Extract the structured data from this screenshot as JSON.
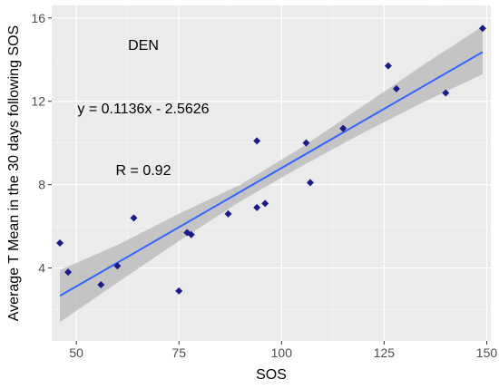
{
  "chart_data": {
    "type": "scatter",
    "xlabel": "SOS",
    "ylabel": "Average T Mean in the 30 days following SOS",
    "xlim": [
      44,
      151
    ],
    "ylim": [
      0.5,
      16.6
    ],
    "x_ticks": [
      50,
      75,
      100,
      125,
      150
    ],
    "y_ticks": [
      4,
      8,
      12,
      16
    ],
    "grid": true,
    "annotations": {
      "site": "DEN",
      "equation": "y = 0.1136x - 2.5626",
      "r": "R = 0.92"
    },
    "series": [
      {
        "points": [
          {
            "x": 46,
            "y": 5.2
          },
          {
            "x": 48,
            "y": 3.8
          },
          {
            "x": 56,
            "y": 3.2
          },
          {
            "x": 60,
            "y": 4.1
          },
          {
            "x": 64,
            "y": 6.4
          },
          {
            "x": 75,
            "y": 2.9
          },
          {
            "x": 77,
            "y": 5.7
          },
          {
            "x": 78,
            "y": 5.6
          },
          {
            "x": 87,
            "y": 6.6
          },
          {
            "x": 94,
            "y": 10.1
          },
          {
            "x": 94,
            "y": 6.9
          },
          {
            "x": 96,
            "y": 7.1
          },
          {
            "x": 106,
            "y": 10.0
          },
          {
            "x": 107,
            "y": 8.1
          },
          {
            "x": 115,
            "y": 10.7
          },
          {
            "x": 126,
            "y": 13.7
          },
          {
            "x": 128,
            "y": 12.6
          },
          {
            "x": 140,
            "y": 12.4
          },
          {
            "x": 149,
            "y": 15.5
          }
        ]
      }
    ],
    "fit_line": {
      "x_range": [
        46,
        149
      ],
      "slope": 0.1136,
      "intercept": -2.5626,
      "ci_band": [
        {
          "x": 46,
          "lower": 1.4,
          "upper": 3.9
        },
        {
          "x": 60,
          "lower": 3.3,
          "upper": 5.1
        },
        {
          "x": 75,
          "lower": 5.3,
          "upper": 6.6
        },
        {
          "x": 90,
          "lower": 7.2,
          "upper": 8.0
        },
        {
          "x": 105,
          "lower": 8.9,
          "upper": 9.8
        },
        {
          "x": 120,
          "lower": 10.5,
          "upper": 11.8
        },
        {
          "x": 135,
          "lower": 12.0,
          "upper": 13.8
        },
        {
          "x": 149,
          "lower": 13.3,
          "upper": 15.6
        }
      ]
    },
    "colors": {
      "panel_background": "#ebebeb",
      "gridline_major": "#ffffff",
      "gridline_minor": "#f5f5f5",
      "points": "#1a1a8c",
      "fit_line": "#3366ff",
      "ci_band": "#bdbdbd"
    }
  }
}
